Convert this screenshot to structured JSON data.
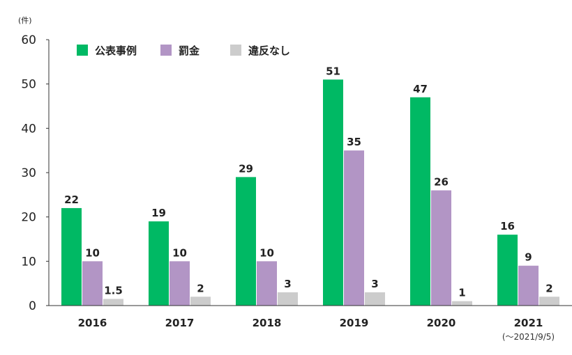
{
  "chart_data": {
    "type": "bar",
    "unit": "(件)",
    "categories": [
      "2016",
      "2017",
      "2018",
      "2019",
      "2020",
      "2021"
    ],
    "category_notes": [
      "",
      "",
      "",
      "",
      "",
      "(～2021/9/5)"
    ],
    "series": [
      {
        "name": "公表事例",
        "values": [
          22,
          19,
          29,
          51,
          47,
          16
        ],
        "labels": [
          "22",
          "19",
          "29",
          "51",
          "47",
          "16"
        ],
        "color": "#00b964"
      },
      {
        "name": "罰金",
        "values": [
          10,
          10,
          10,
          35,
          26,
          9
        ],
        "labels": [
          "10",
          "10",
          "10",
          "35",
          "26",
          "9"
        ],
        "color": "#b295c5"
      },
      {
        "name": "違反なし",
        "values": [
          1.5,
          2,
          3,
          3,
          1,
          2
        ],
        "labels": [
          "1.5",
          "2",
          "3",
          "3",
          "1",
          "2"
        ],
        "color": "#cccccc"
      }
    ],
    "ylim": [
      0,
      60
    ],
    "yticks": [
      "0",
      "10",
      "20",
      "30",
      "40",
      "50",
      "60"
    ],
    "grid": false,
    "legend": "top-left"
  }
}
